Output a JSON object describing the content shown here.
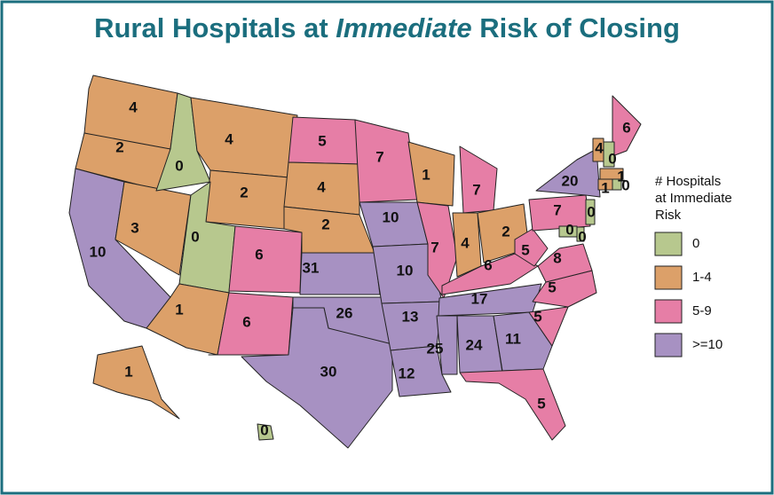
{
  "title_parts": [
    "Rural Hospitals at ",
    "Immediate",
    " Risk of Closing"
  ],
  "legend": {
    "title_lines": [
      "# Hospitals",
      "at Immediate",
      "Risk"
    ],
    "items": [
      {
        "label": "0",
        "color": "#b7c88e"
      },
      {
        "label": "1-4",
        "color": "#dca069"
      },
      {
        "label": "5-9",
        "color": "#e67ea6"
      },
      {
        "label": ">=10",
        "color": "#a791c2"
      }
    ]
  },
  "regions": [
    {
      "value": 4,
      "color": "#dca069"
    },
    {
      "value": 2,
      "color": "#dca069"
    },
    {
      "value": 10,
      "color": "#a791c2"
    },
    {
      "value": 3,
      "color": "#dca069"
    },
    {
      "value": 0,
      "color": "#b7c88e"
    },
    {
      "value": 4,
      "color": "#dca069"
    },
    {
      "value": 2,
      "color": "#dca069"
    },
    {
      "value": 0,
      "color": "#b7c88e"
    },
    {
      "value": 1,
      "color": "#dca069"
    },
    {
      "value": 6,
      "color": "#e67ea6"
    },
    {
      "value": 6,
      "color": "#e67ea6"
    },
    {
      "value": 5,
      "color": "#e67ea6"
    },
    {
      "value": 4,
      "color": "#dca069"
    },
    {
      "value": 2,
      "color": "#dca069"
    },
    {
      "value": 31,
      "color": "#a791c2"
    },
    {
      "value": 26,
      "color": "#a791c2"
    },
    {
      "value": 30,
      "color": "#a791c2"
    },
    {
      "value": 7,
      "color": "#e67ea6"
    },
    {
      "value": 10,
      "color": "#a791c2"
    },
    {
      "value": 10,
      "color": "#a791c2"
    },
    {
      "value": 13,
      "color": "#a791c2"
    },
    {
      "value": 12,
      "color": "#a791c2"
    },
    {
      "value": 1,
      "color": "#dca069"
    },
    {
      "value": 7,
      "color": "#e67ea6"
    },
    {
      "value": 7,
      "color": "#e67ea6"
    },
    {
      "value": 4,
      "color": "#dca069"
    },
    {
      "value": 2,
      "color": "#dca069"
    },
    {
      "value": 6,
      "color": "#e67ea6"
    },
    {
      "value": 17,
      "color": "#a791c2"
    },
    {
      "value": 25,
      "color": "#a791c2"
    },
    {
      "value": 24,
      "color": "#a791c2"
    },
    {
      "value": 11,
      "color": "#a791c2"
    },
    {
      "value": 5,
      "color": "#e67ea6"
    },
    {
      "value": 5,
      "color": "#e67ea6"
    },
    {
      "value": 5,
      "color": "#e67ea6"
    },
    {
      "value": 8,
      "color": "#e67ea6"
    },
    {
      "value": 5,
      "color": "#e67ea6"
    },
    {
      "value": 7,
      "color": "#e67ea6"
    },
    {
      "value": 20,
      "color": "#a791c2"
    },
    {
      "value": 6,
      "color": "#e67ea6"
    },
    {
      "value": 4,
      "color": "#dca069"
    },
    {
      "value": 0,
      "color": "#b7c88e"
    },
    {
      "value": 1,
      "color": "#dca069"
    },
    {
      "value": 1,
      "color": "#dca069"
    },
    {
      "value": 0,
      "color": "#b7c88e"
    },
    {
      "value": 0,
      "color": "#b7c88e"
    },
    {
      "value": 0,
      "color": "#b7c88e"
    },
    {
      "value": 0,
      "color": "#b7c88e"
    },
    {
      "value": 1,
      "color": "#dca069"
    },
    {
      "value": 0,
      "color": "#b7c88e"
    }
  ]
}
